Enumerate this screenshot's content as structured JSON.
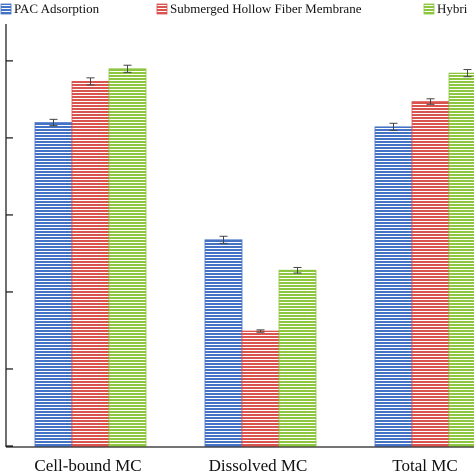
{
  "chart_data": {
    "type": "bar",
    "title": "",
    "xlabel": "",
    "ylabel": "",
    "categories": [
      "Cell-bound MC",
      "Dissolved MC",
      "Total MC"
    ],
    "ylim": [
      0,
      100
    ],
    "y_ticks": [
      0,
      19.5,
      39,
      58.5,
      78,
      97.5
    ],
    "grid": false,
    "legend_position": "top",
    "series": [
      {
        "name": "PAC Adsorption",
        "color": "#4472C4",
        "values": [
          81.9,
          52.2,
          80.8
        ],
        "errors": [
          0.8,
          0.9,
          0.9
        ]
      },
      {
        "name": "Submerged Hollow Fiber Membrane",
        "color": "#D9534F",
        "values": [
          92.3,
          29.1,
          87.2
        ],
        "errors": [
          0.9,
          0.3,
          0.7
        ]
      },
      {
        "name": "Hybri",
        "color": "#8DC63F",
        "values": [
          95.5,
          44.5,
          94.4
        ],
        "errors": [
          0.9,
          0.7,
          0.9
        ]
      }
    ]
  }
}
